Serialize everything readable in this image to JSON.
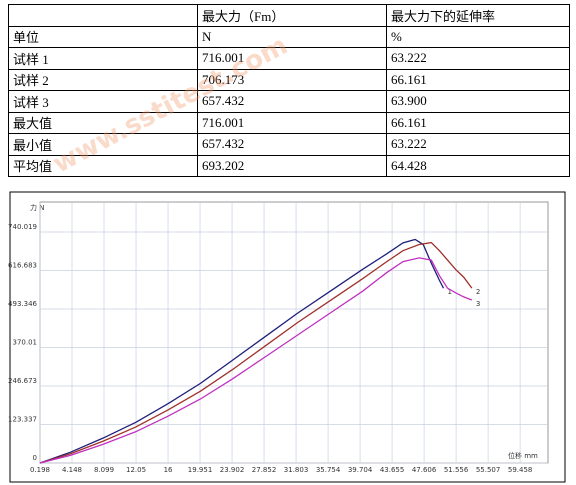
{
  "table": {
    "header": [
      "",
      "最大力（Fm）",
      "最大力下的延伸率"
    ],
    "rows": [
      [
        "单位",
        "N",
        "%"
      ],
      [
        "试样 1",
        "716.001",
        "63.222"
      ],
      [
        "试样 2",
        "706.173",
        "66.161"
      ],
      [
        "试样 3",
        "657.432",
        "63.900"
      ],
      [
        "最大值",
        "716.001",
        "66.161"
      ],
      [
        "最小值",
        "657.432",
        "63.222"
      ],
      [
        "平均值",
        "693.202",
        "64.428"
      ]
    ]
  },
  "watermark": "www.sstitest.com",
  "chart_data": {
    "type": "line",
    "xlabel": "位移 mm",
    "ylabel": "力 N",
    "grid": true,
    "xlim": [
      0.198,
      62.9
    ],
    "ylim": [
      0,
      836
    ],
    "xticks": [
      0.198,
      4.148,
      8.099,
      12.05,
      16,
      19.951,
      23.902,
      27.852,
      31.803,
      35.754,
      39.704,
      43.655,
      47.606,
      51.556,
      55.507,
      59.458
    ],
    "yticks": [
      0,
      123.337,
      246.673,
      370.01,
      493.346,
      616.683,
      740.019
    ],
    "series": [
      {
        "name": "1",
        "color": "#1f1f7a",
        "x": [
          0.198,
          4,
          8,
          12,
          16,
          20,
          24,
          28,
          32,
          36,
          40,
          43,
          45,
          46.5,
          47.5,
          48.5,
          49.5,
          50
        ],
        "values": [
          0,
          35,
          80,
          130,
          190,
          255,
          330,
          405,
          480,
          550,
          620,
          670,
          705,
          716,
          700,
          640,
          585,
          560
        ]
      },
      {
        "name": "2",
        "color": "#a0302a",
        "x": [
          0.198,
          4,
          8,
          12,
          16,
          20,
          24,
          28,
          32,
          36,
          40,
          43,
          45,
          47,
          48.5,
          49.5,
          50.5,
          51.5,
          52.5,
          53.5
        ],
        "values": [
          0,
          30,
          70,
          115,
          170,
          230,
          300,
          375,
          450,
          520,
          590,
          645,
          680,
          700,
          706,
          680,
          650,
          620,
          595,
          560
        ]
      },
      {
        "name": "3",
        "color": "#c030c0",
        "x": [
          0.198,
          4,
          8,
          12,
          16,
          20,
          24,
          28,
          32,
          36,
          40,
          43,
          45,
          47,
          48.5,
          49.5,
          50.5,
          51.5,
          52.5,
          53.5
        ],
        "values": [
          0,
          25,
          60,
          100,
          150,
          205,
          270,
          340,
          410,
          480,
          550,
          610,
          645,
          657,
          650,
          600,
          560,
          545,
          532,
          522
        ]
      }
    ]
  }
}
